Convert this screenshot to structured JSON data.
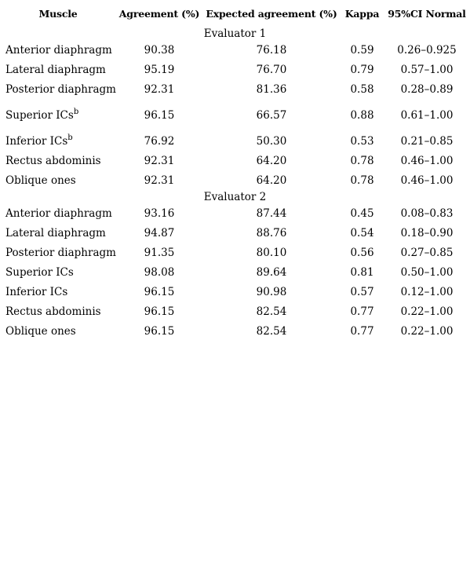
{
  "headers": {
    "muscle": "Muscle",
    "agreement": "Agreement (%)",
    "expected": "Expected agreement (%)",
    "kappa": "Kappa",
    "ci": "95%CI Normal"
  },
  "groups": [
    {
      "label": "Evaluator 1",
      "rows": [
        {
          "muscle": "Anterior diaphragm",
          "sup": "",
          "agreement": "90.38",
          "expected": "76.18",
          "kappa": "0.59",
          "ci": "0.26–0.925"
        },
        {
          "muscle": "Lateral diaphragm",
          "sup": "",
          "agreement": "95.19",
          "expected": "76.70",
          "kappa": "0.79",
          "ci": "0.57–1.00"
        },
        {
          "muscle": "Posterior diaphragm",
          "sup": "",
          "agreement": "92.31",
          "expected": "81.36",
          "kappa": "0.58",
          "ci": "0.28–0.89"
        },
        {
          "muscle": "Superior ICs",
          "sup": "b",
          "agreement": "96.15",
          "expected": "66.57",
          "kappa": "0.88",
          "ci": "0.61–1.00"
        },
        {
          "muscle": "Inferior ICs",
          "sup": "b",
          "agreement": "76.92",
          "expected": "50.30",
          "kappa": "0.53",
          "ci": "0.21–0.85"
        },
        {
          "muscle": "Rectus abdominis",
          "sup": "",
          "agreement": "92.31",
          "expected": "64.20",
          "kappa": "0.78",
          "ci": "0.46–1.00"
        },
        {
          "muscle": "Oblique ones",
          "sup": "",
          "agreement": "92.31",
          "expected": "64.20",
          "kappa": "0.78",
          "ci": "0.46–1.00"
        }
      ]
    },
    {
      "label": "Evaluator 2",
      "rows": [
        {
          "muscle": "Anterior diaphragm",
          "sup": "",
          "agreement": "93.16",
          "expected": "87.44",
          "kappa": "0.45",
          "ci": "0.08–0.83"
        },
        {
          "muscle": "Lateral diaphragm",
          "sup": "",
          "agreement": "94.87",
          "expected": "88.76",
          "kappa": "0.54",
          "ci": "0.18–0.90"
        },
        {
          "muscle": "Posterior diaphragm",
          "sup": "",
          "agreement": "91.35",
          "expected": "80.10",
          "kappa": "0.56",
          "ci": "0.27–0.85"
        },
        {
          "muscle": "Superior ICs",
          "sup": "",
          "agreement": "98.08",
          "expected": "89.64",
          "kappa": "0.81",
          "ci": "0.50–1.00"
        },
        {
          "muscle": "Inferior ICs",
          "sup": "",
          "agreement": "96.15",
          "expected": "90.98",
          "kappa": "0.57",
          "ci": "0.12–1.00"
        },
        {
          "muscle": "Rectus abdominis",
          "sup": "",
          "agreement": "96.15",
          "expected": "82.54",
          "kappa": "0.77",
          "ci": "0.22–1.00"
        },
        {
          "muscle": "Oblique ones",
          "sup": "",
          "agreement": "96.15",
          "expected": "82.54",
          "kappa": "0.77",
          "ci": "0.22–1.00"
        }
      ]
    }
  ]
}
